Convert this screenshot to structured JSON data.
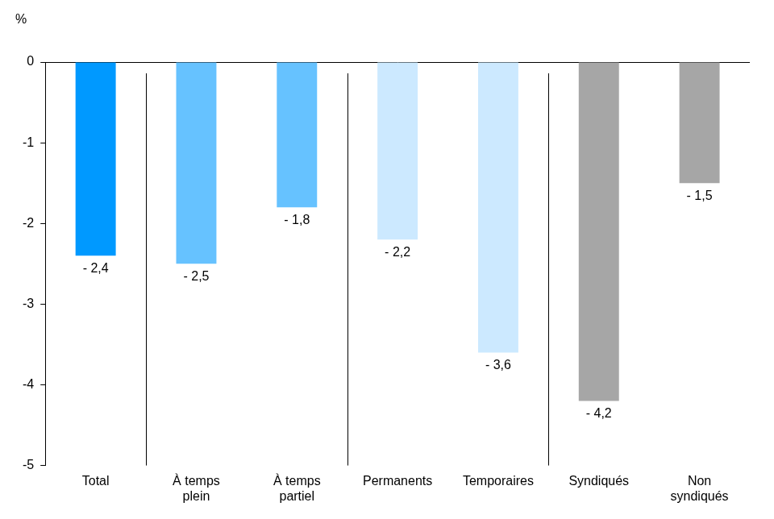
{
  "chart_data": {
    "type": "bar",
    "ylabel": "%",
    "categories": [
      "Total",
      "À temps\nplein",
      "À temps\npartiel",
      "Permanents",
      "Temporaires",
      "Syndiqués",
      "Non\nsyndiqués"
    ],
    "values": [
      -2.4,
      -2.5,
      -1.8,
      -2.2,
      -3.6,
      -4.2,
      -1.5
    ],
    "value_labels": [
      "- 2,4",
      "- 2,5",
      "- 1,8",
      "- 2,2",
      "- 3,6",
      "- 4,2",
      "- 1,5"
    ],
    "colors": [
      "#0099ff",
      "#66c2ff",
      "#66c2ff",
      "#cce9ff",
      "#cce9ff",
      "#a6a6a6",
      "#a6a6a6"
    ],
    "ylim": [
      -5,
      0
    ],
    "yticks": [
      -5,
      -4,
      -3,
      -2,
      -1,
      0
    ],
    "grid": false,
    "data_labels": true,
    "tick_labels": true
  }
}
